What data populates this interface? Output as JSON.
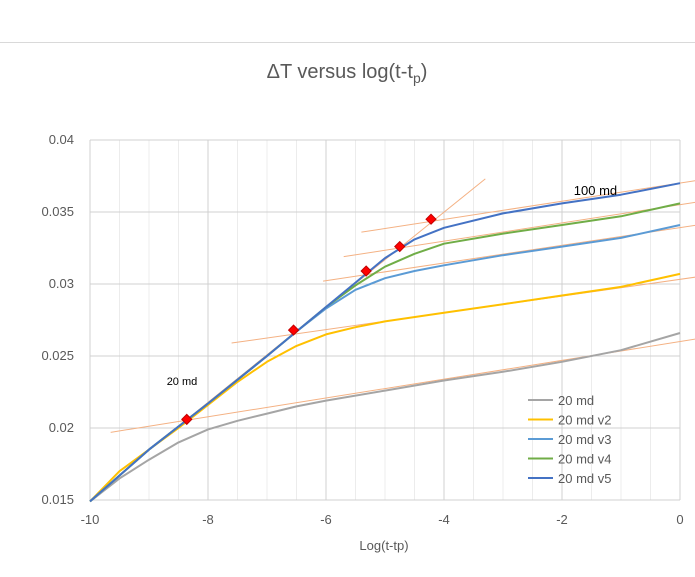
{
  "chart_data": {
    "type": "line",
    "title_main": "ΔT versus log(t-t",
    "title_sub": "p",
    "title_end": ")",
    "xlabel": "Log(t-tp)",
    "ylabel": "",
    "xlim": [
      -10,
      0
    ],
    "ylim": [
      0.015,
      0.04
    ],
    "x_ticks": [
      -10,
      -8,
      -6,
      -4,
      -2,
      0
    ],
    "x_tick_labels": [
      "-10",
      "-8",
      "-6",
      "-4",
      "-2",
      "0"
    ],
    "y_ticks": [
      0.015,
      0.02,
      0.025,
      0.03,
      0.035,
      0.04
    ],
    "y_tick_labels": [
      "0.015",
      "0.02",
      "0.025",
      "0.03",
      "0.035",
      "0.04"
    ],
    "grid": true,
    "legend_position": "bottom-right",
    "annotations": [
      {
        "text": "100 md",
        "x": -1.8,
        "y": 0.0364
      },
      {
        "text": "20 md",
        "x": -8.7,
        "y": 0.0232
      }
    ],
    "series": [
      {
        "name": "20 md",
        "color": "#a5a5a5",
        "points": [
          [
            -10,
            0.0149
          ],
          [
            -9.5,
            0.0165
          ],
          [
            -9,
            0.0178
          ],
          [
            -8.5,
            0.019
          ],
          [
            -8,
            0.0199
          ],
          [
            -7.5,
            0.0205
          ],
          [
            -7,
            0.021
          ],
          [
            -6.5,
            0.0215
          ],
          [
            -6,
            0.0219
          ],
          [
            -5,
            0.0226
          ],
          [
            -4,
            0.0233
          ],
          [
            -3,
            0.0239
          ],
          [
            -2,
            0.0246
          ],
          [
            -1,
            0.0254
          ],
          [
            0,
            0.0266
          ]
        ]
      },
      {
        "name": "20 md v2",
        "color": "#ffc000",
        "points": [
          [
            -10,
            0.0149
          ],
          [
            -9.5,
            0.017
          ],
          [
            -9,
            0.0185
          ],
          [
            -8.5,
            0.02
          ],
          [
            -8,
            0.0216
          ],
          [
            -7.5,
            0.0232
          ],
          [
            -7,
            0.0246
          ],
          [
            -6.5,
            0.0257
          ],
          [
            -6,
            0.0265
          ],
          [
            -5.5,
            0.027
          ],
          [
            -5,
            0.0274
          ],
          [
            -4,
            0.028
          ],
          [
            -3,
            0.0286
          ],
          [
            -2,
            0.0292
          ],
          [
            -1,
            0.0298
          ],
          [
            0,
            0.0307
          ]
        ]
      },
      {
        "name": "20 md v3",
        "color": "#5b9bd5",
        "points": [
          [
            -10,
            0.0149
          ],
          [
            -9,
            0.0185
          ],
          [
            -8,
            0.0217
          ],
          [
            -7,
            0.025
          ],
          [
            -6.5,
            0.0267
          ],
          [
            -6,
            0.0283
          ],
          [
            -5.5,
            0.0296
          ],
          [
            -5,
            0.0304
          ],
          [
            -4.5,
            0.0309
          ],
          [
            -4,
            0.0313
          ],
          [
            -3,
            0.032
          ],
          [
            -2,
            0.0326
          ],
          [
            -1,
            0.0332
          ],
          [
            0,
            0.0341
          ]
        ]
      },
      {
        "name": "20 md v4",
        "color": "#70ad47",
        "points": [
          [
            -10,
            0.0149
          ],
          [
            -9,
            0.0185
          ],
          [
            -8,
            0.0217
          ],
          [
            -7,
            0.025
          ],
          [
            -6.5,
            0.0267
          ],
          [
            -6,
            0.0284
          ],
          [
            -5.5,
            0.0299
          ],
          [
            -5,
            0.0312
          ],
          [
            -4.5,
            0.0321
          ],
          [
            -4,
            0.0328
          ],
          [
            -3,
            0.0335
          ],
          [
            -2,
            0.0341
          ],
          [
            -1,
            0.0347
          ],
          [
            0,
            0.0356
          ]
        ]
      },
      {
        "name": "20 md v5",
        "color": "#4472c4",
        "points": [
          [
            -10,
            0.0149
          ],
          [
            -9,
            0.0185
          ],
          [
            -8,
            0.0217
          ],
          [
            -7,
            0.025
          ],
          [
            -6.5,
            0.0267
          ],
          [
            -6,
            0.0284
          ],
          [
            -5.5,
            0.0301
          ],
          [
            -5,
            0.0318
          ],
          [
            -4.5,
            0.0331
          ],
          [
            -4,
            0.0339
          ],
          [
            -3,
            0.0349
          ],
          [
            -2,
            0.0356
          ],
          [
            -1,
            0.0362
          ],
          [
            0,
            0.037
          ]
        ]
      }
    ],
    "markers": {
      "color": "#ff0000",
      "edge": "#c00000",
      "points": [
        [
          -8.36,
          0.0206
        ],
        [
          -6.55,
          0.0268
        ],
        [
          -5.32,
          0.0309
        ],
        [
          -4.75,
          0.0326
        ],
        [
          -4.22,
          0.0345
        ]
      ]
    },
    "fit_lines": {
      "color": "#f4b183",
      "lines": [
        [
          [
            -9.65,
            0.0197
          ],
          [
            0.3,
            0.0262
          ]
        ],
        [
          [
            -7.6,
            0.0259
          ],
          [
            0.3,
            0.0305
          ]
        ],
        [
          [
            -6.05,
            0.0302
          ],
          [
            0.3,
            0.0341
          ]
        ],
        [
          [
            -5.7,
            0.0319
          ],
          [
            0.3,
            0.0357
          ]
        ],
        [
          [
            -5.4,
            0.0336
          ],
          [
            0.3,
            0.0372
          ]
        ],
        [
          [
            -8.6,
            0.0198
          ],
          [
            -3.3,
            0.0373
          ]
        ]
      ]
    }
  }
}
